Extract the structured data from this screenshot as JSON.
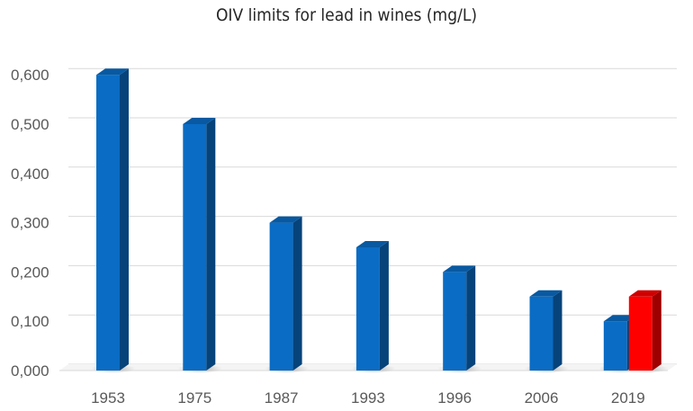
{
  "chart_data": {
    "type": "bar",
    "title": "OIV limits for lead in wines (mg/L)",
    "xlabel": "",
    "ylabel": "",
    "categories": [
      "1953",
      "1975",
      "1987",
      "1993",
      "1996",
      "2006",
      "2019"
    ],
    "series": [
      {
        "values": [
          0.6,
          0.5,
          0.3,
          0.25,
          0.2,
          0.15,
          0.1
        ],
        "color": "#0a6cc4"
      },
      {
        "values": [
          null,
          null,
          null,
          null,
          null,
          null,
          0.15
        ],
        "color": "#ff0000"
      }
    ],
    "ylim": [
      0,
      0.6
    ],
    "yticks": [
      "0,000",
      "0,100",
      "0,200",
      "0,300",
      "0,400",
      "0,500",
      "0,600"
    ],
    "grid": true,
    "legend": "none",
    "style": "3d-column"
  }
}
